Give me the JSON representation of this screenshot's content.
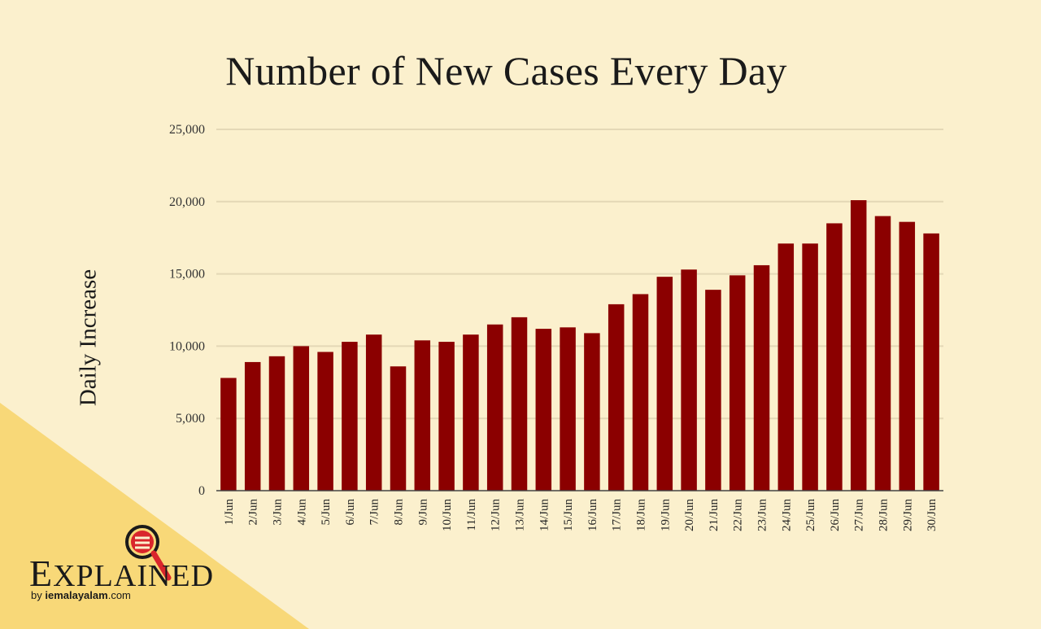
{
  "chart_data": {
    "type": "bar",
    "title": "Number of New Cases Every Day",
    "xlabel": "",
    "ylabel": "Daily Increase",
    "ylim": [
      0,
      25000
    ],
    "yticks": [
      0,
      5000,
      10000,
      15000,
      20000,
      25000
    ],
    "ytick_labels": [
      "0",
      "5,000",
      "10,000",
      "15,000",
      "20,000",
      "25,000"
    ],
    "grid": true,
    "bar_color": "#8b0000",
    "categories": [
      "1/Jun",
      "2/Jun",
      "3/Jun",
      "4/Jun",
      "5/Jun",
      "6/Jun",
      "7/Jun",
      "8/Jun",
      "9/Jun",
      "10/Jun",
      "11/Jun",
      "12/Jun",
      "13/Jun",
      "14/Jun",
      "15/Jun",
      "16/Jun",
      "17/Jun",
      "18/Jun",
      "19/Jun",
      "20/Jun",
      "21/Jun",
      "22/Jun",
      "23/Jun",
      "24/Jun",
      "25/Jun",
      "26/Jun",
      "27/Jun",
      "28/Jun",
      "29/Jun",
      "30/Jun"
    ],
    "values": [
      7800,
      8900,
      9300,
      10000,
      9600,
      10300,
      10800,
      8600,
      10400,
      10300,
      10800,
      11500,
      12000,
      11200,
      11300,
      10900,
      12900,
      13600,
      14800,
      15300,
      13900,
      14900,
      15600,
      17100,
      17100,
      18500,
      20100,
      19000,
      18600,
      17800
    ]
  },
  "branding": {
    "logo_word_first": "E",
    "logo_word_rest": "XPLAINED",
    "logo_by": "by",
    "logo_site": "iemalayalam",
    "logo_domain": ".com",
    "logo_icon": "magnifier-icon"
  },
  "colors": {
    "background": "#fbf0cd",
    "corner": "#f8d878",
    "bar": "#8b0000",
    "grid": "#e4d8b6",
    "accent_red": "#d9262c"
  }
}
